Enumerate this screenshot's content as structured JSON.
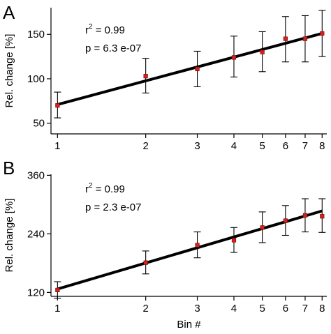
{
  "chart_data": [
    {
      "type": "scatter",
      "panel_label": "A",
      "title": "",
      "xlabel": "",
      "ylabel": "Rel. change [%]",
      "x_scale": "log",
      "xlim": [
        0.95,
        8.3
      ],
      "ylim": [
        38,
        180
      ],
      "x_ticks": [
        1,
        2,
        3,
        4,
        5,
        6,
        7,
        8
      ],
      "y_ticks": [
        50,
        100,
        150
      ],
      "grid": false,
      "legend": "none",
      "stats": {
        "r2_label": "r",
        "r2_sup": "2",
        "r2_value": " = 0.99",
        "p_text": "p = 6.3 e-07"
      },
      "points": [
        {
          "x": 1,
          "y": 70,
          "err_low": 56,
          "err_high": 85
        },
        {
          "x": 2,
          "y": 103,
          "err_low": 84,
          "err_high": 123
        },
        {
          "x": 3,
          "y": 111,
          "err_low": 91,
          "err_high": 131
        },
        {
          "x": 4,
          "y": 124,
          "err_low": 102,
          "err_high": 148
        },
        {
          "x": 5,
          "y": 130,
          "err_low": 108,
          "err_high": 153
        },
        {
          "x": 6,
          "y": 145,
          "err_low": 119,
          "err_high": 170
        },
        {
          "x": 7,
          "y": 145,
          "err_low": 119,
          "err_high": 171
        },
        {
          "x": 8,
          "y": 151,
          "err_low": 125,
          "err_high": 177
        }
      ],
      "fit": {
        "x": [
          1,
          8
        ],
        "y": [
          71,
          151
        ]
      },
      "marker_color": "#d62020",
      "line_color": "#000000"
    },
    {
      "type": "scatter",
      "panel_label": "B",
      "title": "",
      "xlabel": "Bin #",
      "ylabel": "Rel. change [%]",
      "x_scale": "log",
      "xlim": [
        0.95,
        8.3
      ],
      "ylim": [
        112,
        362
      ],
      "x_ticks": [
        1,
        2,
        3,
        4,
        5,
        6,
        7,
        8
      ],
      "y_ticks": [
        120,
        240,
        360
      ],
      "grid": false,
      "legend": "none",
      "stats": {
        "r2_label": "r",
        "r2_sup": "2",
        "r2_value": " = 0.99",
        "p_text": "p = 2.3 e-07"
      },
      "points": [
        {
          "x": 1,
          "y": 125,
          "err_low": 108,
          "err_high": 142
        },
        {
          "x": 2,
          "y": 181,
          "err_low": 158,
          "err_high": 205
        },
        {
          "x": 3,
          "y": 217,
          "err_low": 191,
          "err_high": 244
        },
        {
          "x": 4,
          "y": 227,
          "err_low": 202,
          "err_high": 253
        },
        {
          "x": 5,
          "y": 253,
          "err_low": 222,
          "err_high": 285
        },
        {
          "x": 6,
          "y": 267,
          "err_low": 237,
          "err_high": 298
        },
        {
          "x": 7,
          "y": 278,
          "err_low": 244,
          "err_high": 312
        },
        {
          "x": 8,
          "y": 276,
          "err_low": 243,
          "err_high": 312
        }
      ],
      "fit": {
        "x": [
          1,
          8
        ],
        "y": [
          127,
          287
        ]
      },
      "marker_color": "#d62020",
      "line_color": "#000000"
    }
  ]
}
